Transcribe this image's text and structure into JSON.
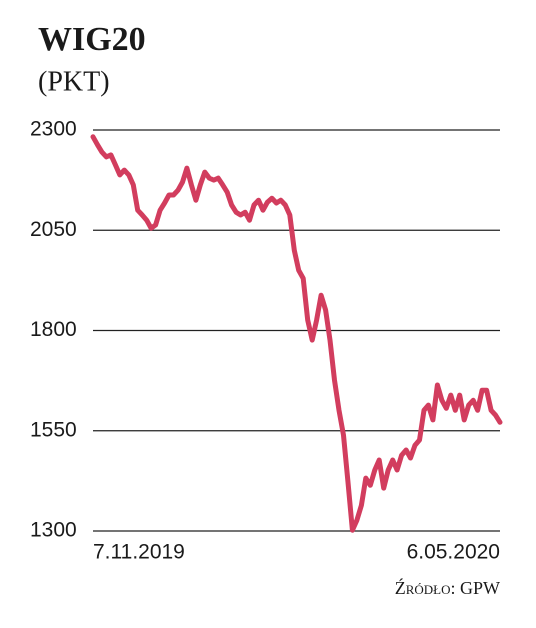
{
  "chart_data": {
    "type": "line",
    "title": "WIG20",
    "subtitle": "(PKT)",
    "source": "Źródło: GPW",
    "categories": [
      "7.11.2019",
      null,
      null,
      null,
      null,
      null,
      null,
      null,
      null,
      null,
      null,
      null,
      null,
      null,
      null,
      null,
      null,
      null,
      null,
      null,
      null,
      null,
      null,
      null,
      null,
      null,
      null,
      null,
      null,
      null,
      null,
      null,
      null,
      null,
      null,
      null,
      null,
      null,
      null,
      null,
      null,
      null,
      null,
      null,
      null,
      null,
      null,
      null,
      null,
      null,
      null,
      null,
      null,
      null,
      null,
      null,
      null,
      null,
      null,
      null,
      null,
      null,
      null,
      null,
      null,
      null,
      null,
      null,
      null,
      null,
      null,
      null,
      null,
      null,
      null,
      null,
      null,
      null,
      null,
      null,
      null,
      null,
      null,
      null,
      null,
      null,
      null,
      null,
      null,
      null,
      null,
      "6.05.2020"
    ],
    "values": [
      2283,
      2263,
      2245,
      2233,
      2238,
      2213,
      2188,
      2200,
      2188,
      2163,
      2100,
      2088,
      2075,
      2055,
      2063,
      2100,
      2118,
      2138,
      2138,
      2150,
      2170,
      2205,
      2163,
      2125,
      2163,
      2195,
      2180,
      2175,
      2180,
      2163,
      2145,
      2113,
      2095,
      2088,
      2095,
      2075,
      2113,
      2125,
      2100,
      2120,
      2130,
      2118,
      2125,
      2113,
      2088,
      2000,
      1950,
      1930,
      1826,
      1776,
      1826,
      1888,
      1851,
      1776,
      1676,
      1601,
      1539,
      1424,
      1302,
      1327,
      1364,
      1432,
      1414,
      1452,
      1477,
      1407,
      1452,
      1477,
      1452,
      1489,
      1502,
      1482,
      1514,
      1527,
      1601,
      1614,
      1577,
      1664,
      1626,
      1606,
      1639,
      1601,
      1639,
      1577,
      1614,
      1626,
      1601,
      1651,
      1651,
      1601,
      1589,
      1571
    ],
    "color": "#d23d5e",
    "ylim": [
      1300,
      2300
    ],
    "yticks": [
      1300,
      1550,
      1800,
      2050,
      2300
    ],
    "grid": true
  }
}
